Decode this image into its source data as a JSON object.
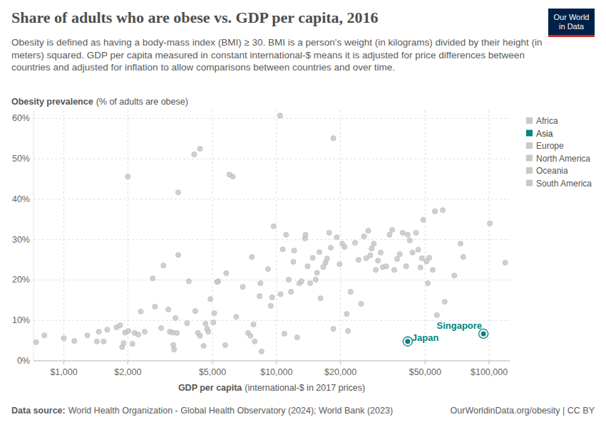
{
  "chart_data": {
    "type": "scatter",
    "title": "Share of adults who are obese vs. GDP per capita, 2016",
    "subtitle": "Obesity is defined as having a body-mass index (BMI) ≥ 30. BMI is a person's weight (in kilograms) divided by their height (in meters) squared. GDP per capita measured in constant international-$ means it is adjusted for price differences between countries and adjusted for inflation to allow comparisons between countries and over time.",
    "ylabel": "Obesity prevalence",
    "ylabel_note": "(% of adults are obese)",
    "xlabel": "GDP per capita",
    "xlabel_note": "(international-$ in 2017 prices)",
    "source_label": "Data source:",
    "source": "World Health Organization - Global Health Observatory (2024); World Bank (2023)",
    "url": "OurWorldinData.org/obesity | CC BY",
    "logo": [
      "Our World",
      "in Data"
    ],
    "log": "x",
    "grid": true,
    "legend": "right",
    "xlim": [
      720,
      125000
    ],
    "xticks": [
      {
        "value": 1000,
        "label": "$1,000"
      },
      {
        "value": 2000,
        "label": "$2,000"
      },
      {
        "value": 5000,
        "label": "$5,000"
      },
      {
        "value": 10000,
        "label": "$10,000"
      },
      {
        "value": 20000,
        "label": "$20,000"
      },
      {
        "value": 50000,
        "label": "$50,000"
      },
      {
        "value": 100000,
        "label": "$100,000"
      }
    ],
    "ylim": [
      0,
      62
    ],
    "yticks": [
      {
        "value": 0,
        "label": "0%"
      },
      {
        "value": 10,
        "label": "10%"
      },
      {
        "value": 20,
        "label": "20%"
      },
      {
        "value": 30,
        "label": "30%"
      },
      {
        "value": 40,
        "label": "40%"
      },
      {
        "value": 50,
        "label": "50%"
      },
      {
        "value": 60,
        "label": "60%"
      }
    ],
    "series": [
      {
        "name": "Africa",
        "color": "#c8c8c8",
        "x": [
          740,
          810,
          1000,
          1120,
          1290,
          1430,
          1460,
          1540,
          1600,
          1770,
          1840,
          1880,
          1910,
          1940,
          2010,
          2100,
          2150,
          2240,
          2300,
          2400,
          2620,
          2680,
          2870,
          2940,
          3100,
          3150,
          3250,
          3270,
          3300,
          3350,
          3400,
          3870,
          4150,
          4270,
          4370,
          4540,
          4640,
          4720,
          4780,
          4890,
          5050,
          5100,
          5740,
          6470,
          7350,
          7540,
          7660,
          7800,
          7900,
          8500,
          10450,
          10900,
          11400,
          12500,
          12800,
          14000,
          18500,
          21400,
          21700,
          56800,
          61800
        ],
        "values": [
          4.6,
          6.3,
          5.6,
          4.9,
          6.3,
          4.8,
          7.2,
          4.8,
          7.7,
          8.3,
          8.8,
          3.4,
          4.4,
          7.0,
          7.4,
          4.2,
          6.9,
          6.5,
          12.2,
          7.2,
          20.4,
          13.4,
          8.1,
          23.6,
          12.7,
          7.2,
          7.0,
          3.9,
          2.8,
          10.6,
          6.9,
          19.7,
          12.3,
          6.9,
          6.2,
          3.7,
          9.2,
          7.9,
          7.2,
          15.3,
          9.5,
          11.8,
          3.9,
          10.9,
          6.9,
          6.2,
          25.7,
          9.0,
          4.8,
          2.3,
          16.5,
          6.7,
          20.1,
          5.8,
          19.2,
          23.4,
          7.9,
          11.6,
          7.4,
          11.3,
          14.6
        ]
      },
      {
        "name": "Asia",
        "color": "#00847e",
        "x": [
          41400,
          94000
        ],
        "values": [
          4.8,
          6.7
        ],
        "point_labels": [
          "Japan",
          "Singapore"
        ]
      },
      {
        "name": "Europe",
        "color": "#c8c8c8",
        "x": [
          5320,
          9400,
          11700,
          13100,
          14400,
          16100,
          16600,
          19800,
          25000,
          26400,
          27000,
          27600,
          28000,
          28700,
          29300,
          30000,
          30900,
          31600,
          32800,
          34000,
          35000,
          35800,
          36900,
          38000,
          39200,
          40700,
          42400,
          43600,
          45300,
          47500,
          48300,
          50700,
          51500,
          52300,
          54300,
          55600,
          68600,
          73300,
          75600,
          100800,
          119000
        ],
        "values": [
          19.7,
          13.6,
          17.1,
          19.7,
          19.2,
          15.5,
          23.2,
          23.9,
          14.1,
          25.4,
          32.2,
          26.1,
          27.8,
          29.0,
          22.5,
          24.8,
          26.8,
          23.2,
          23.4,
          31.2,
          32.4,
          22.5,
          25.2,
          26.4,
          31.7,
          23.4,
          29.8,
          26.8,
          31.7,
          23.1,
          25.4,
          24.6,
          19.2,
          25.5,
          22.5,
          37.0,
          21.1,
          29.0,
          25.7,
          34.0,
          24.3
        ]
      },
      {
        "name": "North America",
        "color": "#c8c8c8",
        "x": [
          3800,
          5800,
          8400,
          9120,
          9690,
          10700,
          11100,
          12100,
          13600,
          13700,
          15900,
          17300,
          17700,
          19200,
          20400,
          23400,
          25800,
          49000,
          60500
        ],
        "values": [
          9.3,
          21.7,
          19.2,
          22.7,
          33.3,
          27.6,
          31.2,
          27.3,
          30.3,
          31.2,
          26.9,
          25.3,
          31.7,
          30.6,
          29.0,
          29.2,
          30.8,
          34.9,
          37.3
        ]
      },
      {
        "name": "Oceania",
        "color": "#c8c8c8",
        "x": [
          2000,
          3450,
          3450,
          4100,
          4370,
          6000,
          6230,
          10400,
          18500,
          41400,
          46400
        ],
        "values": [
          45.6,
          41.7,
          26.2,
          51.1,
          52.5,
          46.1,
          45.6,
          60.7,
          55.1,
          31.2,
          27.5
        ]
      },
      {
        "name": "South America",
        "color": "#c8c8c8",
        "x": [
          5250,
          6940,
          8330,
          9540,
          12000,
          14800,
          15300,
          15500,
          17000,
          18000,
          20900,
          22300,
          24300
        ],
        "values": [
          19.5,
          18.3,
          16.0,
          15.7,
          24.5,
          25.5,
          20.1,
          21.8,
          24.3,
          28.0,
          28.2,
          17.1,
          25.0
        ]
      }
    ]
  }
}
